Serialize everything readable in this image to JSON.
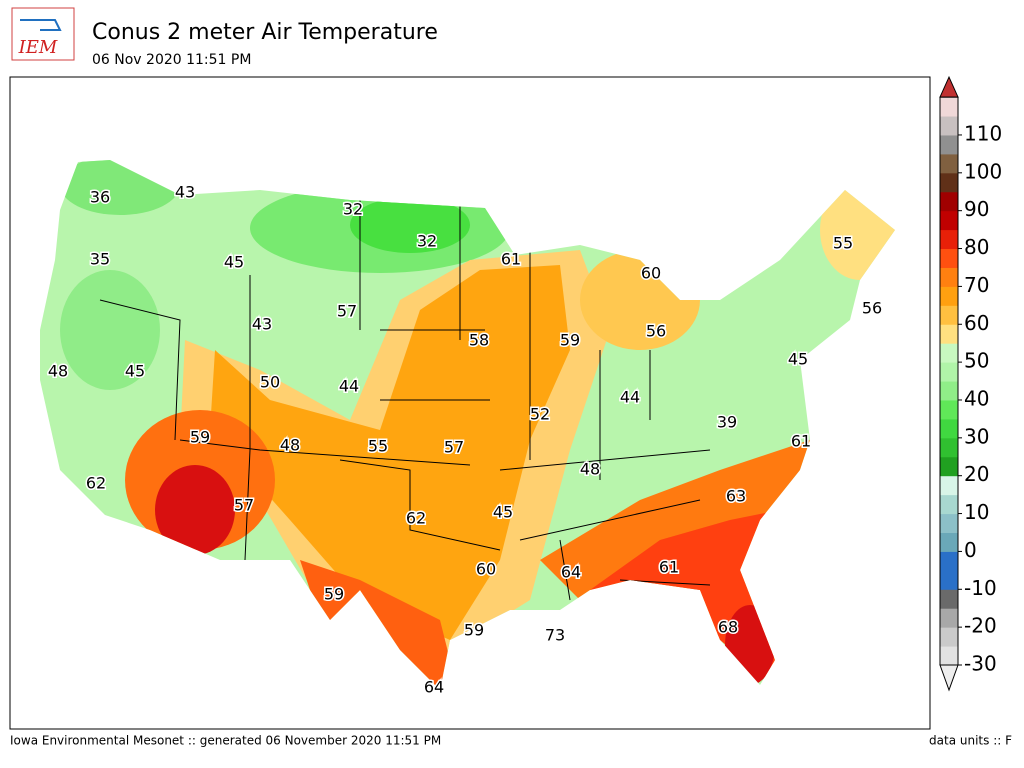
{
  "header": {
    "logo": "IEM",
    "title": "Conus 2 meter Air Temperature",
    "subtitle": "06 Nov 2020 11:51 PM"
  },
  "map": {
    "labels": [
      36,
      43,
      32,
      32,
      35,
      45,
      61,
      60,
      55,
      56,
      43,
      57,
      58,
      59,
      56,
      48,
      45,
      50,
      44,
      45,
      44,
      52,
      39,
      59,
      48,
      55,
      57,
      61,
      48,
      62,
      63,
      57,
      62,
      45,
      60,
      64,
      61,
      59,
      59,
      73,
      68,
      64
    ]
  },
  "colorbar": {
    "ticks": [
      -30,
      -20,
      -10,
      0,
      10,
      20,
      30,
      40,
      50,
      60,
      70,
      80,
      90,
      100,
      110
    ]
  },
  "footer": {
    "left": "Iowa Environmental Mesonet :: generated 06 November 2020 11:51 PM",
    "right": "data units :: F"
  }
}
